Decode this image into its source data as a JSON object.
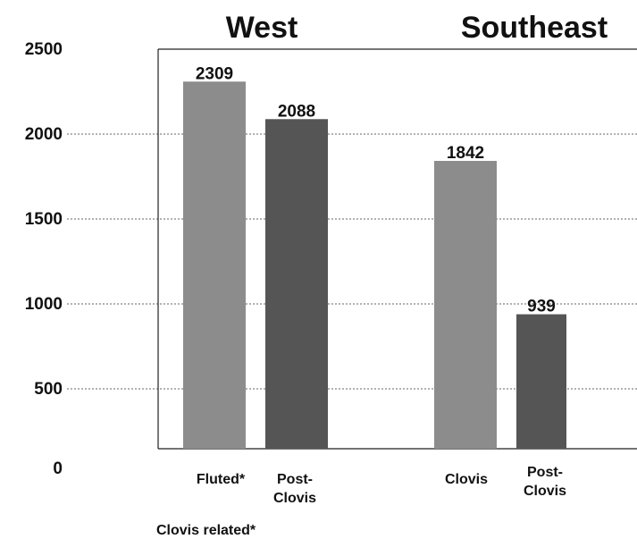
{
  "chart_data": {
    "type": "bar",
    "title": "",
    "xlabel": "",
    "ylabel": "",
    "ylim": [
      0,
      2500
    ],
    "yticks": [
      0,
      500,
      1000,
      1500,
      2000,
      2500
    ],
    "grid": "dashed horizontal",
    "groups": [
      {
        "name": "West",
        "bars": [
          {
            "label_lines": [
              "Fluted*"
            ],
            "value": 2309,
            "color": "#8c8c8c"
          },
          {
            "label_lines": [
              "Post-",
              "Clovis"
            ],
            "value": 2088,
            "color": "#555555"
          }
        ]
      },
      {
        "name": "Southeast",
        "bars": [
          {
            "label_lines": [
              "Clovis"
            ],
            "value": 1842,
            "color": "#8c8c8c"
          },
          {
            "label_lines": [
              "Post-",
              "Clovis"
            ],
            "value": 939,
            "color": "#555555"
          }
        ]
      }
    ],
    "footnote": "Clovis related*"
  }
}
